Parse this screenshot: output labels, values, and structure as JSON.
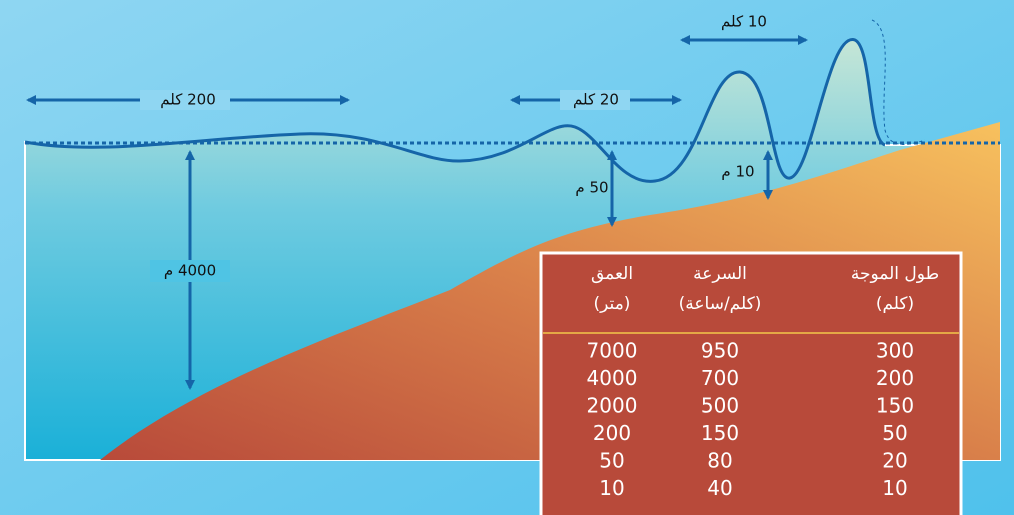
{
  "annotations": {
    "distances": [
      "200 كلم",
      "20 كلم",
      "10 كلم"
    ],
    "depths": [
      "4000 م",
      "50 م",
      "10 م"
    ]
  },
  "table": {
    "headers": [
      {
        "title": "العمق",
        "unit": "(متر)"
      },
      {
        "title": "السرعة",
        "unit": "(كلم/ساعة)"
      },
      {
        "title": "طول الموجة",
        "unit": "(كلم)"
      }
    ],
    "rows": [
      [
        "7000",
        "950",
        "300"
      ],
      [
        "4000",
        "700",
        "200"
      ],
      [
        "2000",
        "500",
        "150"
      ],
      [
        "200",
        "150",
        "50"
      ],
      [
        "50",
        "80",
        "20"
      ],
      [
        "10",
        "40",
        "10"
      ]
    ]
  }
}
